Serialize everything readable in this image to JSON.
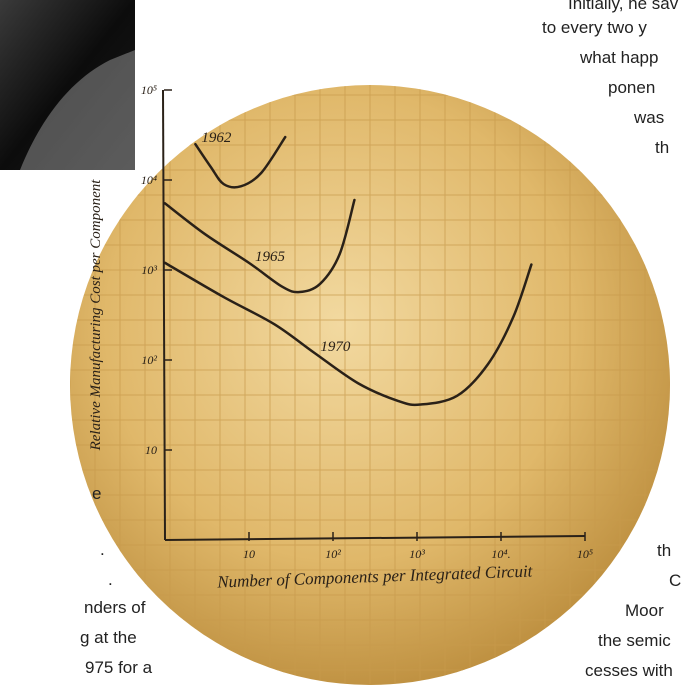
{
  "body_text": {
    "right": [
      "Initially, he sav",
      "to every two y",
      "what happ",
      "ponen",
      "was",
      "th",
      "th",
      "C",
      "Moor",
      "the semic",
      "cesses with"
    ],
    "left": [
      "e",
      ".",
      ".",
      "nders of",
      "g at the",
      "975 for a"
    ]
  },
  "chart_data": {
    "type": "line",
    "y_label": "Relative Manufacturing Cost per Component",
    "x_label": "Number of Components per Integrated Circuit",
    "log_x": true,
    "log_y": true,
    "xlim": [
      1,
      100000
    ],
    "ylim": [
      1,
      100000
    ],
    "xticks": [
      {
        "value": 10,
        "label": "10"
      },
      {
        "value": 100,
        "label": "10²"
      },
      {
        "value": 1000,
        "label": "10³"
      },
      {
        "value": 10000,
        "label": "10⁴."
      },
      {
        "value": 100000,
        "label": "10⁵"
      }
    ],
    "yticks": [
      {
        "value": 10,
        "label": "10"
      },
      {
        "value": 100,
        "label": "10²"
      },
      {
        "value": 1000,
        "label": "10³"
      },
      {
        "value": 10000,
        "label": "10⁴"
      },
      {
        "value": 100000,
        "label": "10⁵"
      }
    ],
    "series": [
      {
        "name": "1962",
        "color": "#2a2118",
        "x": [
          2.3,
          3.5,
          5,
          8,
          14,
          27
        ],
        "values": [
          25000,
          14000,
          9000,
          8500,
          12000,
          30000
        ]
      },
      {
        "name": "1965",
        "color": "#2a2118",
        "x": [
          1,
          3,
          10,
          25,
          40,
          70,
          120,
          180
        ],
        "values": [
          5500,
          2500,
          1200,
          650,
          570,
          700,
          1500,
          6000
        ]
      },
      {
        "name": "1970",
        "color": "#2a2118",
        "x": [
          1,
          5,
          20,
          60,
          200,
          600,
          1100,
          3000,
          7000,
          14000,
          23000
        ],
        "values": [
          1200,
          500,
          250,
          120,
          55,
          35,
          32,
          40,
          90,
          300,
          1150
        ]
      }
    ]
  }
}
